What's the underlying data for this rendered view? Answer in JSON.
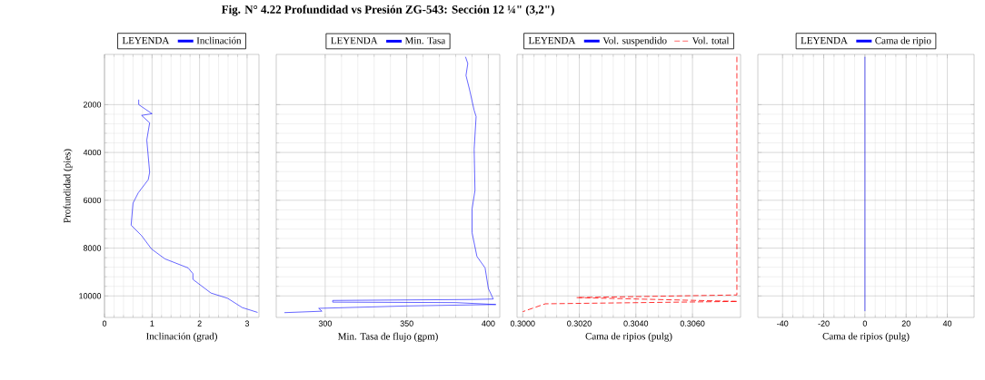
{
  "chart_data": [
    {
      "type": "line",
      "xlabel": "Inclinación (grad)",
      "ylabel": "Profundidad (pies)",
      "legend_title": "LEYENDA",
      "legend": "top",
      "grid": true,
      "xlim": [
        0,
        3.25
      ],
      "xticks": [
        0,
        1,
        2,
        3
      ],
      "ylim": [
        10900,
        -100
      ],
      "yticks": [
        2000,
        4000,
        6000,
        8000,
        10000
      ],
      "series": [
        {
          "name": "Inclinación",
          "color": "#0000ff",
          "x": [
            0.72,
            0.72,
            1.0,
            0.78,
            0.95,
            0.89,
            0.95,
            0.92,
            0.71,
            0.6,
            0.56,
            0.78,
            0.99,
            1.27,
            1.76,
            1.86,
            1.86,
            2.24,
            2.59,
            2.9,
            3.22
          ],
          "values": [
            1790,
            2000,
            2380,
            2450,
            2760,
            3480,
            4830,
            5140,
            5690,
            6120,
            7040,
            7480,
            8040,
            8450,
            8830,
            9070,
            9310,
            9880,
            10100,
            10490,
            10690
          ]
        }
      ]
    },
    {
      "type": "line",
      "title": "Fig. N° 4.22 Profundidad vs Presión ZG-543: Sección 12 ¼\" (3,2\")",
      "xlabel": "Min. Tasa de flujo (gpm)",
      "legend_title": "LEYENDA",
      "legend": "top",
      "grid": true,
      "tick_labels": "x",
      "xlim": [
        270,
        407
      ],
      "xticks": [
        300,
        350,
        400
      ],
      "ylim": [
        10900,
        -100
      ],
      "series": [
        {
          "name": "Min. Tasa",
          "color": "#0000ff",
          "x": [
            386,
            387.4,
            386.3,
            388.5,
            391.3,
            392.5,
            391.3,
            391.8,
            390,
            390,
            393,
            398,
            400,
            403,
            390,
            304.6,
            304.6,
            380,
            404.6,
            350,
            296,
            298,
            275
          ],
          "values": [
            0,
            280,
            780,
            1380,
            2240,
            2500,
            3860,
            5590,
            6370,
            7350,
            8350,
            8830,
            9690,
            10130,
            10150,
            10190,
            10260,
            10280,
            10360,
            10420,
            10520,
            10640,
            10700
          ]
        }
      ]
    },
    {
      "type": "line",
      "xlabel": "Cama de ripios (pulg)",
      "legend_title": "LEYENDA",
      "legend": "top",
      "grid": true,
      "tick_labels": "x",
      "xlim": [
        0.2998,
        0.3077
      ],
      "xticks": [
        {
          "value": 0.3,
          "label": "0.3000"
        },
        {
          "value": 0.302,
          "label": "0.3020"
        },
        {
          "value": 0.304,
          "label": "0.3040"
        },
        {
          "value": 0.306,
          "label": "0.3060"
        }
      ],
      "ylim": [
        10900,
        -100
      ],
      "series": [
        {
          "name": "Vol. suspendido",
          "color": "#0000ff",
          "x": [
            null
          ],
          "values": [
            null
          ]
        },
        {
          "name": "Vol. total",
          "color": "#ff0000",
          "line_style": "dashed",
          "x": [
            0.30757,
            0.30757,
            0.3019,
            0.3076,
            0.3008,
            0.3
          ],
          "values": [
            0,
            9960,
            10070,
            10230,
            10330,
            10660
          ]
        }
      ]
    },
    {
      "type": "line",
      "xlabel": "Cama de ripios (pulg)",
      "legend_title": "LEYENDA",
      "legend": "top",
      "grid": true,
      "tick_labels": "x",
      "xlim": [
        -52,
        53
      ],
      "xticks": [
        -40,
        -20,
        0,
        20,
        40
      ],
      "ylim": [
        10900,
        -100
      ],
      "series": [
        {
          "name": "Cama de ripio",
          "color": "#0000ff",
          "x": [
            0,
            0
          ],
          "values": [
            0,
            10640
          ]
        }
      ]
    }
  ]
}
